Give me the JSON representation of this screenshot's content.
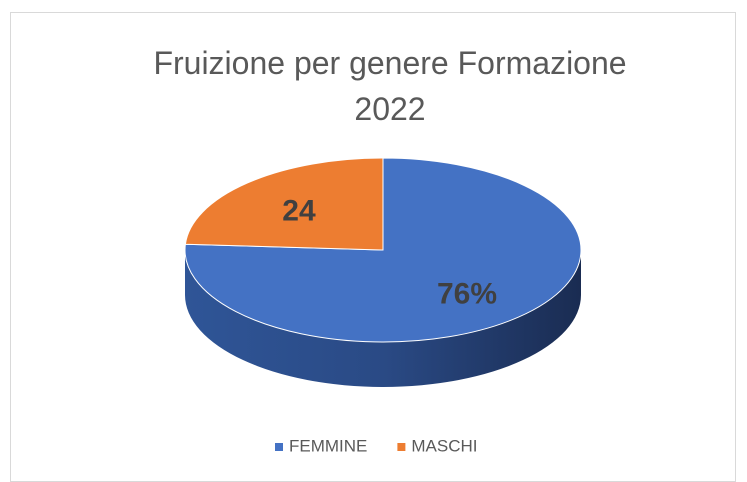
{
  "chart_data": {
    "type": "pie",
    "title": "Fruizione per genere Formazione 2022",
    "categories": [
      "FEMMINE",
      "MASCHI"
    ],
    "values": [
      76,
      24
    ],
    "value_labels": [
      "76%",
      "24"
    ],
    "colors": [
      "#4472c4",
      "#ed7d31"
    ],
    "legend": "bottom"
  }
}
